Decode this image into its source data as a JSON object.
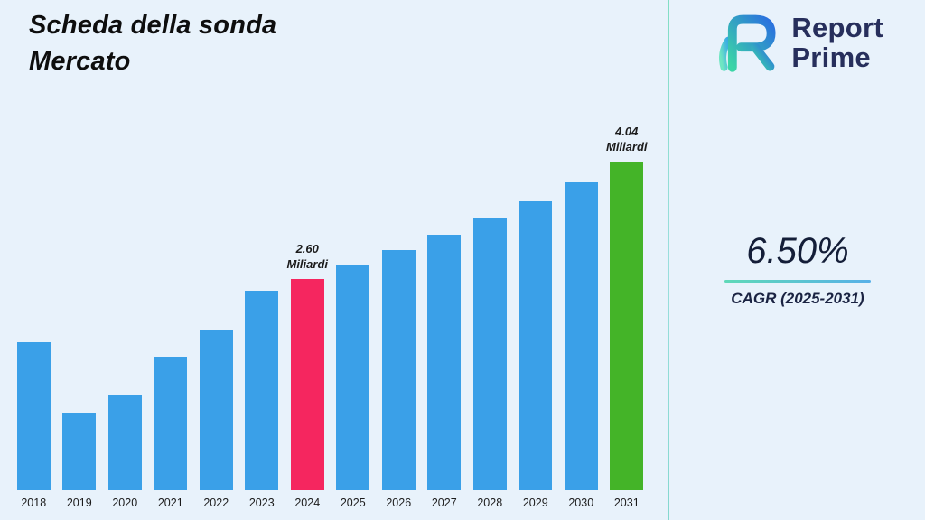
{
  "page": {
    "background": "#e8f2fb"
  },
  "title": {
    "line1": "Scheda della sonda",
    "line2": "Mercato"
  },
  "logo": {
    "brand_line1": "Report",
    "brand_line2": "Prime"
  },
  "stats": {
    "cagr_value": "6.50%",
    "cagr_label": "CAGR (2025-2031)"
  },
  "chart_data": {
    "type": "bar",
    "title": "Scheda della sonda Mercato",
    "unit": "Miliardi",
    "categories": [
      "2018",
      "2019",
      "2020",
      "2021",
      "2022",
      "2023",
      "2024",
      "2025",
      "2026",
      "2027",
      "2028",
      "2029",
      "2030",
      "2031"
    ],
    "values": [
      1.82,
      0.96,
      1.18,
      1.64,
      1.98,
      2.46,
      2.6,
      2.77,
      2.95,
      3.14,
      3.34,
      3.56,
      3.79,
      4.04
    ],
    "ylim": [
      0,
      4.5
    ],
    "grid": false,
    "legend": "none",
    "colors": {
      "default": "#3aa0e8",
      "2024": "#f5265f",
      "2031": "#44b428"
    },
    "annotations": [
      {
        "year": "2024",
        "line1": "2.60",
        "line2": "Miliardi"
      },
      {
        "year": "2031",
        "line1": "4.04",
        "line2": "Miliardi"
      }
    ]
  }
}
